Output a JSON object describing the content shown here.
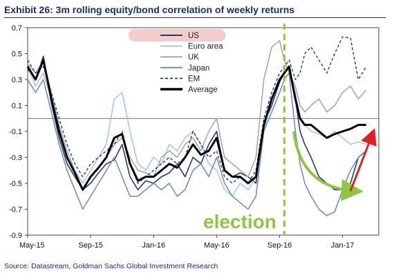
{
  "title": "Exhibit 26: 3m rolling equity/bond correlation of weekly returns",
  "source": "Source: Datastream, Goldman Sachs Global Investment Research",
  "colors": {
    "us": "#1f3b73",
    "euro": "#9fcbe8",
    "uk": "#a8a8a8",
    "japan": "#6f8fbf",
    "em": "#1f3b73",
    "average": "#000000",
    "annotation_green": "#8dc63f",
    "annotation_red": "#e02020",
    "legend_highlight": "#f4cccc"
  },
  "chart_data": {
    "type": "line",
    "title": "Exhibit 26: 3m rolling equity/bond correlation of weekly returns",
    "xlabel": "",
    "ylabel": "",
    "x_ticks": [
      "May-15",
      "Sep-15",
      "Jan-16",
      "May-16",
      "Sep-16",
      "Jan-17"
    ],
    "x_range": [
      0,
      22.3
    ],
    "y_ticks": [
      "0.7",
      "0.5",
      "0.3",
      "0.1",
      "-0.1",
      "-0.3",
      "-0.5",
      "-0.7",
      "-0.9"
    ],
    "ylim": [
      -0.9,
      0.7
    ],
    "grid": false,
    "legend_position": "top-center",
    "reference_line_y": 0,
    "series": [
      {
        "name": "US",
        "style": "solid",
        "x": [
          0,
          0.5,
          1,
          1.5,
          2,
          2.5,
          3,
          3.5,
          4,
          4.5,
          5,
          5.5,
          6,
          6.5,
          7,
          7.5,
          8,
          8.5,
          9,
          9.5,
          10,
          10.5,
          11,
          11.5,
          12,
          12.5,
          13,
          13.5,
          14,
          14.5,
          15,
          15.5,
          16,
          16.3,
          16.6,
          17,
          17.3,
          17.6,
          18,
          18.5,
          19,
          19.5,
          20,
          20.5,
          21,
          21.5
        ],
        "y": [
          0.38,
          0.3,
          0.48,
          0.12,
          -0.15,
          -0.35,
          -0.45,
          -0.55,
          -0.5,
          -0.42,
          -0.35,
          -0.32,
          -0.2,
          -0.45,
          -0.55,
          -0.48,
          -0.5,
          -0.45,
          -0.42,
          -0.35,
          -0.45,
          -0.3,
          -0.35,
          -0.2,
          -0.1,
          -0.4,
          -0.45,
          -0.42,
          -0.45,
          -0.5,
          -0.05,
          0.1,
          0.28,
          0.35,
          0.4,
          0.15,
          -0.1,
          -0.2,
          -0.3,
          -0.45,
          -0.5,
          -0.55,
          -0.55,
          -0.5,
          -0.3,
          -0.25
        ]
      },
      {
        "name": "Euro area",
        "style": "solid",
        "x": [
          0,
          0.5,
          1,
          1.5,
          2,
          2.5,
          3,
          3.5,
          4,
          4.5,
          5,
          5.5,
          6,
          6.5,
          7,
          7.5,
          8,
          8.5,
          9,
          9.5,
          10,
          10.5,
          11,
          11.5,
          12,
          12.5,
          13,
          13.5,
          14,
          14.5,
          15,
          15.5,
          16,
          16.3,
          16.6,
          17,
          17.3,
          17.6,
          18,
          18.5,
          19,
          19.5,
          20,
          20.5,
          21,
          21.5
        ],
        "y": [
          0.4,
          0.25,
          0.35,
          0.15,
          -0.1,
          -0.3,
          -0.4,
          -0.5,
          -0.4,
          -0.3,
          -0.2,
          0.15,
          0.2,
          -0.1,
          -0.35,
          -0.4,
          -0.3,
          -0.35,
          -0.2,
          -0.25,
          -0.15,
          -0.1,
          -0.2,
          -0.35,
          -0.4,
          -0.55,
          -0.6,
          -0.5,
          -0.55,
          -0.45,
          -0.1,
          0.15,
          0.3,
          0.35,
          0.4,
          0.2,
          0.0,
          -0.05,
          -0.1,
          -0.12,
          -0.15,
          -0.1,
          -0.15,
          -0.2,
          -0.18,
          -0.2
        ]
      },
      {
        "name": "UK",
        "style": "solid",
        "x": [
          0,
          0.5,
          1,
          1.5,
          2,
          2.5,
          3,
          3.5,
          4,
          4.5,
          5,
          5.5,
          6,
          6.5,
          7,
          7.5,
          8,
          8.5,
          9,
          9.5,
          10,
          10.5,
          11,
          11.5,
          12,
          12.5,
          13,
          13.5,
          14,
          14.5,
          15,
          15.5,
          16,
          16.3,
          16.6,
          17,
          17.3,
          17.6,
          18,
          18.5,
          19,
          19.5,
          20,
          20.5,
          21,
          21.5
        ],
        "y": [
          0.42,
          0.35,
          0.45,
          0.2,
          -0.05,
          -0.25,
          -0.4,
          -0.55,
          -0.45,
          -0.38,
          -0.3,
          -0.2,
          -0.15,
          -0.3,
          -0.4,
          -0.42,
          -0.45,
          -0.3,
          -0.25,
          -0.3,
          -0.2,
          -0.15,
          -0.25,
          -0.1,
          0.0,
          -0.3,
          -0.35,
          -0.4,
          -0.45,
          -0.3,
          0.3,
          0.55,
          0.6,
          0.45,
          0.35,
          0.25,
          0.1,
          0.05,
          0.1,
          0.15,
          0.05,
          0.1,
          0.2,
          0.25,
          0.15,
          0.22
        ]
      },
      {
        "name": "Japan",
        "style": "solid",
        "x": [
          0,
          0.5,
          1,
          1.5,
          2,
          2.5,
          3,
          3.5,
          4,
          4.5,
          5,
          5.5,
          6,
          6.5,
          7,
          7.5,
          8,
          8.5,
          9,
          9.5,
          10,
          10.5,
          11,
          11.5,
          12,
          12.5,
          13,
          13.5,
          14,
          14.5,
          15,
          15.5,
          16,
          16.3,
          16.6,
          17,
          17.3,
          17.6,
          18,
          18.5,
          19,
          19.5,
          20,
          20.5,
          21,
          21.5
        ],
        "y": [
          0.3,
          0.2,
          0.3,
          0.05,
          -0.2,
          -0.4,
          -0.55,
          -0.7,
          -0.6,
          -0.5,
          -0.4,
          -0.3,
          -0.45,
          -0.6,
          -0.6,
          -0.55,
          -0.5,
          -0.55,
          -0.5,
          -0.6,
          -0.55,
          -0.4,
          -0.35,
          -0.45,
          -0.3,
          -0.5,
          -0.6,
          -0.65,
          -0.7,
          -0.6,
          -0.1,
          0.05,
          0.2,
          0.3,
          0.35,
          -0.1,
          -0.35,
          -0.5,
          -0.6,
          -0.7,
          -0.75,
          -0.72,
          -0.55,
          -0.4,
          -0.3,
          -0.25
        ]
      },
      {
        "name": "EM",
        "style": "dashed",
        "x": [
          0,
          0.5,
          1,
          1.5,
          2,
          2.5,
          3,
          3.5,
          4,
          4.5,
          5,
          5.5,
          6,
          6.5,
          7,
          7.5,
          8,
          8.5,
          9,
          9.5,
          10,
          10.5,
          11,
          11.5,
          12,
          12.5,
          13,
          13.5,
          14,
          14.5,
          15,
          15.5,
          16,
          16.3,
          16.6,
          17,
          17.3,
          17.6,
          18,
          18.5,
          19,
          19.5,
          20,
          20.5,
          21,
          21.5
        ],
        "y": [
          0.45,
          0.35,
          0.4,
          0.2,
          0.0,
          -0.2,
          -0.35,
          -0.45,
          -0.35,
          -0.3,
          -0.25,
          -0.2,
          -0.1,
          -0.35,
          -0.5,
          -0.45,
          -0.4,
          -0.35,
          -0.3,
          -0.35,
          -0.3,
          -0.1,
          -0.2,
          -0.3,
          -0.25,
          -0.45,
          -0.5,
          -0.45,
          -0.5,
          -0.4,
          0.0,
          0.2,
          0.35,
          0.4,
          0.45,
          0.3,
          0.35,
          0.5,
          0.55,
          0.45,
          0.35,
          0.5,
          0.63,
          0.62,
          0.3,
          0.4
        ]
      },
      {
        "name": "Average",
        "style": "bold",
        "x": [
          0,
          0.5,
          1,
          1.5,
          2,
          2.5,
          3,
          3.5,
          4,
          4.5,
          5,
          5.5,
          6,
          6.5,
          7,
          7.5,
          8,
          8.5,
          9,
          9.5,
          10,
          10.5,
          11,
          11.5,
          12,
          12.5,
          13,
          13.5,
          14,
          14.5,
          15,
          15.5,
          16,
          16.3,
          16.6,
          17,
          17.3,
          17.6,
          18,
          18.5,
          19,
          19.5,
          20,
          20.5,
          21,
          21.5
        ],
        "y": [
          0.4,
          0.3,
          0.45,
          0.15,
          -0.1,
          -0.3,
          -0.42,
          -0.55,
          -0.45,
          -0.38,
          -0.3,
          -0.15,
          -0.12,
          -0.35,
          -0.48,
          -0.45,
          -0.45,
          -0.4,
          -0.35,
          -0.38,
          -0.3,
          -0.2,
          -0.28,
          -0.25,
          -0.15,
          -0.4,
          -0.45,
          -0.45,
          -0.5,
          -0.45,
          -0.05,
          0.15,
          0.3,
          0.35,
          0.4,
          0.15,
          0.0,
          -0.05,
          -0.05,
          -0.1,
          -0.15,
          -0.12,
          -0.1,
          -0.08,
          -0.05,
          -0.05
        ]
      }
    ],
    "annotations": [
      {
        "type": "text",
        "text": "election",
        "color": "#8dc63f"
      },
      {
        "type": "vertical_dashed_line",
        "x": 16.3,
        "color": "#8dc63f"
      },
      {
        "type": "arrow",
        "from": [
          16.9,
          -0.1
        ],
        "to": [
          20.8,
          -0.56
        ],
        "color": "#8dc63f"
      },
      {
        "type": "arrow",
        "from": [
          20.5,
          -0.56
        ],
        "to": [
          21.9,
          -0.12
        ],
        "color": "#e02020"
      }
    ]
  }
}
